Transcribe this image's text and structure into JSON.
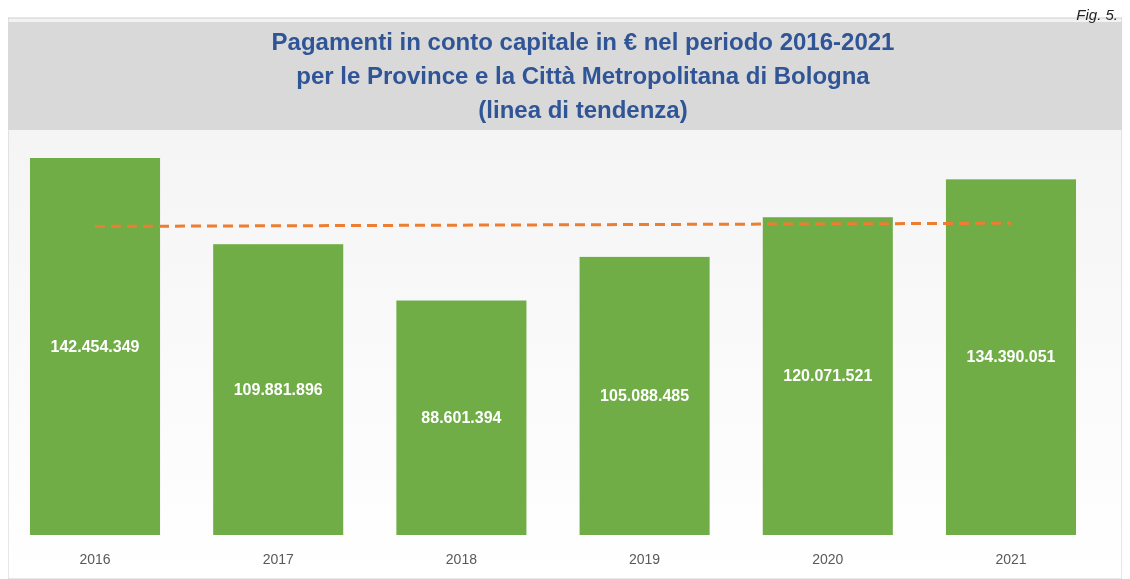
{
  "chart_data": {
    "type": "bar",
    "title": "Pagamenti in conto capitale in € nel periodo 2016-2021\nper le Province e la Città Metropolitana di Bologna\n(linea di tendenza)",
    "annotations": [
      "Fig. 5."
    ],
    "categories": [
      "2016",
      "2017",
      "2018",
      "2019",
      "2020",
      "2021"
    ],
    "series": [
      {
        "color": "#70ad47",
        "values": [
          142454349,
          109881896,
          88601394,
          105088485,
          120071521,
          134390051
        ],
        "value_labels": [
          "142.454.349",
          "109.881.896",
          "88.601.394",
          "105.088.485",
          "120.071.521",
          "134.390.051"
        ]
      },
      {
        "type": "line",
        "color": "#ed7d31",
        "line_style": "dashed",
        "values": [
          116600000,
          116840000,
          117080000,
          117320000,
          117560000,
          117800000
        ]
      }
    ]
  }
}
